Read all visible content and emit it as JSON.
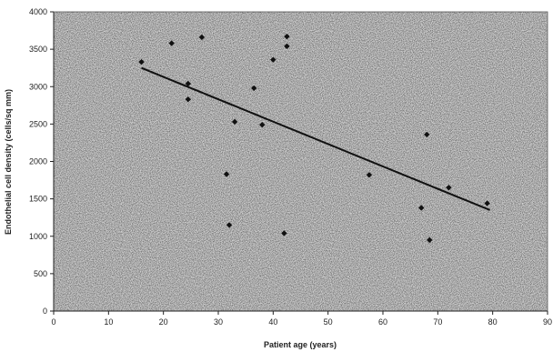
{
  "chart_data": {
    "type": "scatter",
    "title": "",
    "xlabel": "Patient age (years)",
    "ylabel": "Endothelial cell density (cells/sq mm)",
    "xlim": [
      0,
      90
    ],
    "ylim": [
      0,
      4000
    ],
    "x_ticks": [
      "0",
      "10",
      "20",
      "30",
      "40",
      "50",
      "60",
      "70",
      "80",
      "90"
    ],
    "y_ticks": [
      "0",
      "500",
      "1000",
      "1500",
      "2000",
      "2500",
      "3000",
      "3500",
      "4000"
    ],
    "grid": false,
    "legend": "none",
    "background": "stippled gray",
    "marker_color": "#111111",
    "series": [
      {
        "points": [
          {
            "x": 16,
            "y": 3330
          },
          {
            "x": 21.5,
            "y": 3580
          },
          {
            "x": 24.5,
            "y": 3040
          },
          {
            "x": 24.5,
            "y": 2830
          },
          {
            "x": 27,
            "y": 3660
          },
          {
            "x": 31.5,
            "y": 1830
          },
          {
            "x": 32,
            "y": 1150
          },
          {
            "x": 33,
            "y": 2530
          },
          {
            "x": 36.5,
            "y": 2980
          },
          {
            "x": 38,
            "y": 2490
          },
          {
            "x": 40,
            "y": 3360
          },
          {
            "x": 42,
            "y": 1040
          },
          {
            "x": 42.5,
            "y": 3540
          },
          {
            "x": 42.5,
            "y": 3670
          },
          {
            "x": 57.5,
            "y": 1820
          },
          {
            "x": 67,
            "y": 1380
          },
          {
            "x": 68,
            "y": 2360
          },
          {
            "x": 68.5,
            "y": 950
          },
          {
            "x": 72,
            "y": 1650
          },
          {
            "x": 79,
            "y": 1440
          }
        ]
      }
    ],
    "trendline": {
      "x": [
        16,
        79.5
      ],
      "y": [
        3250,
        1350
      ]
    }
  }
}
